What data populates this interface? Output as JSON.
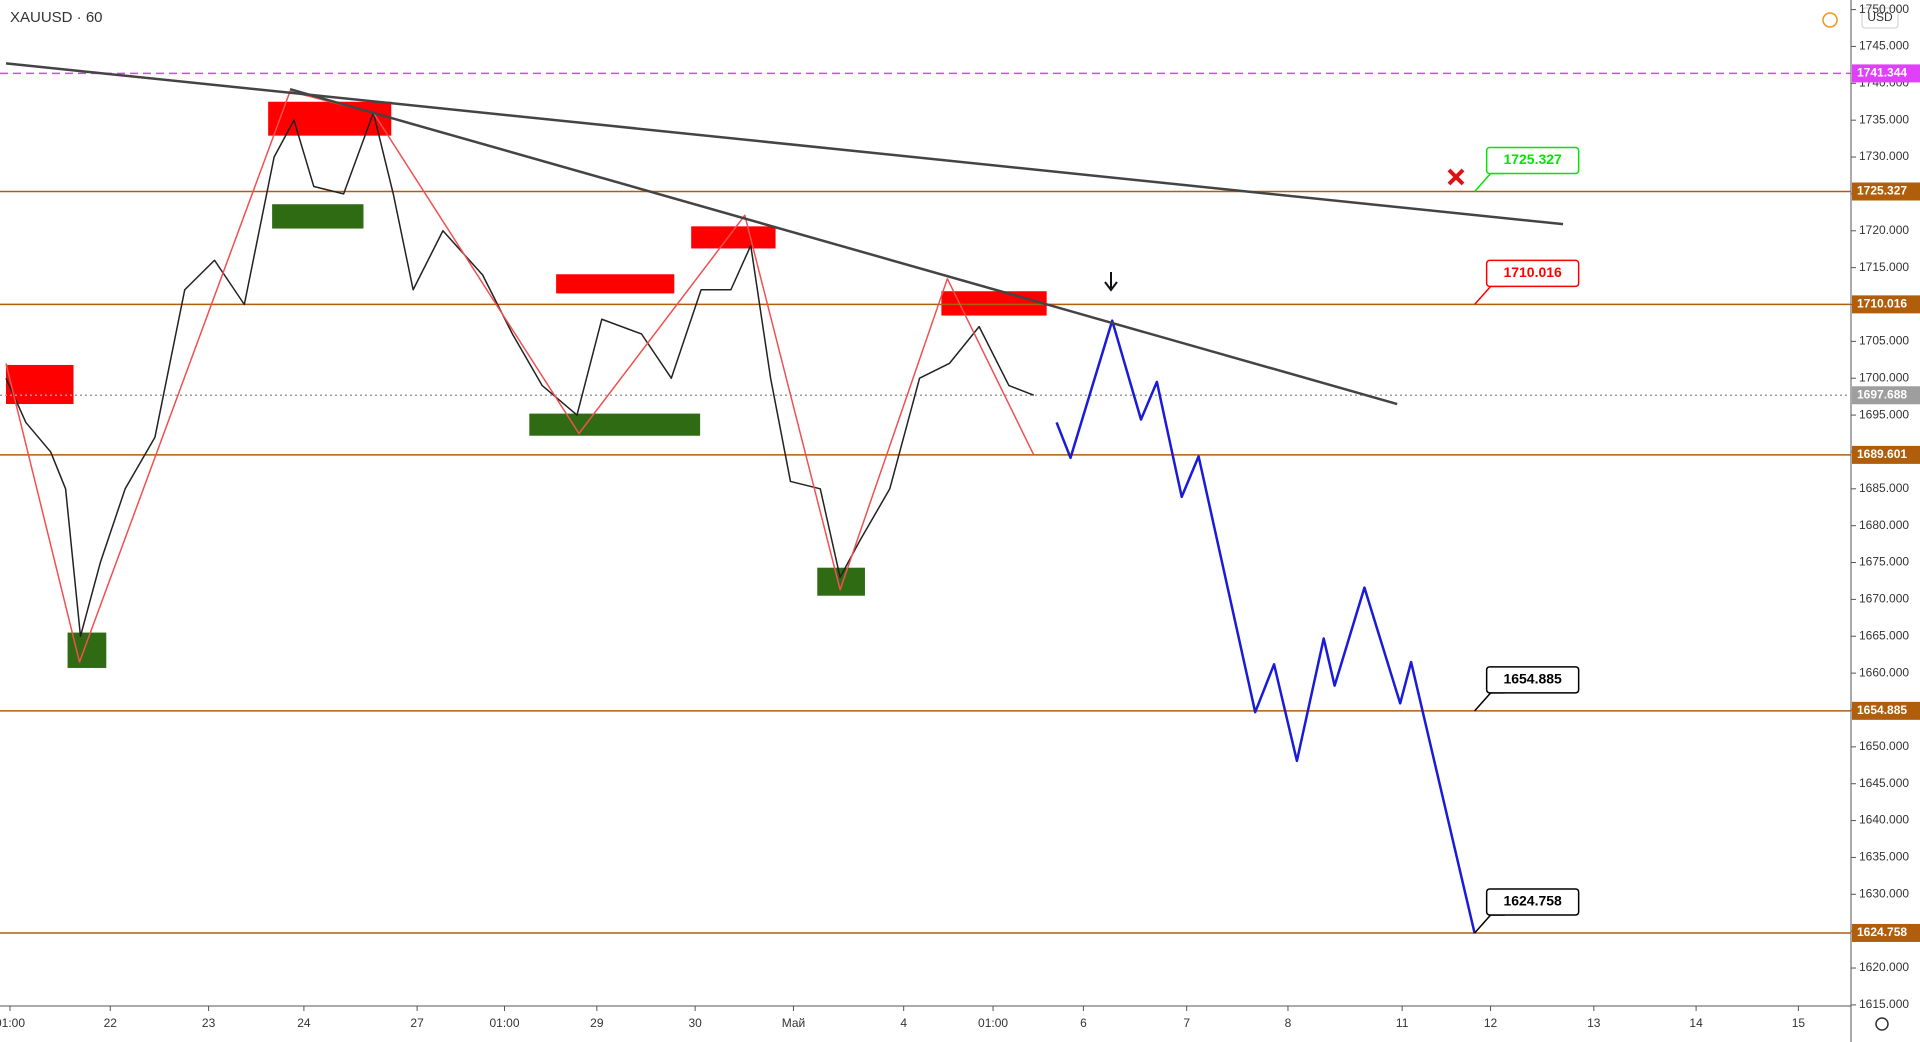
{
  "chart_data": {
    "type": "line",
    "title": "XAUUSD · 60",
    "currency": "USD",
    "xlim": [
      0,
      18.58
    ],
    "xticks": [
      {
        "value": 0.04,
        "label": "01:00"
      },
      {
        "value": 1.05,
        "label": "22"
      },
      {
        "value": 2.04,
        "label": "23"
      },
      {
        "value": 3.0,
        "label": "24"
      },
      {
        "value": 4.14,
        "label": "27"
      },
      {
        "value": 5.02,
        "label": "01:00"
      },
      {
        "value": 5.95,
        "label": "29"
      },
      {
        "value": 6.94,
        "label": "30"
      },
      {
        "value": 7.93,
        "label": "Май"
      },
      {
        "value": 9.04,
        "label": "4"
      },
      {
        "value": 9.94,
        "label": "01:00"
      },
      {
        "value": 10.85,
        "label": "6"
      },
      {
        "value": 11.89,
        "label": "7"
      },
      {
        "value": 12.91,
        "label": "8"
      },
      {
        "value": 14.06,
        "label": "11"
      },
      {
        "value": 14.95,
        "label": "12"
      },
      {
        "value": 15.99,
        "label": "13"
      },
      {
        "value": 17.02,
        "label": "14"
      },
      {
        "value": 18.05,
        "label": "15"
      }
    ],
    "ylim": [
      1614.85,
      1751.3
    ],
    "yticks": [
      {
        "value": 1615,
        "label": "1615.000"
      },
      {
        "value": 1620,
        "label": "1620.000"
      },
      {
        "value": 1625,
        "label": "1625.000"
      },
      {
        "value": 1630,
        "label": "1630.000"
      },
      {
        "value": 1635,
        "label": "1635.000"
      },
      {
        "value": 1640,
        "label": "1640.000"
      },
      {
        "value": 1645,
        "label": "1645.000"
      },
      {
        "value": 1650,
        "label": "1650.000"
      },
      {
        "value": 1655,
        "label": "1655.000"
      },
      {
        "value": 1660,
        "label": "1660.000"
      },
      {
        "value": 1665,
        "label": "1665.000"
      },
      {
        "value": 1670,
        "label": "1670.000"
      },
      {
        "value": 1675,
        "label": "1675.000"
      },
      {
        "value": 1680,
        "label": "1680.000"
      },
      {
        "value": 1685,
        "label": "1685.000"
      },
      {
        "value": 1690,
        "label": "1690.000"
      },
      {
        "value": 1695,
        "label": "1695.000"
      },
      {
        "value": 1700,
        "label": "1700.000"
      },
      {
        "value": 1705,
        "label": "1705.000"
      },
      {
        "value": 1710,
        "label": "1710.000"
      },
      {
        "value": 1715,
        "label": "1715.000"
      },
      {
        "value": 1720,
        "label": "1720.000"
      },
      {
        "value": 1725,
        "label": "1725.000"
      },
      {
        "value": 1730,
        "label": "1730.000"
      },
      {
        "value": 1735,
        "label": "1735.000"
      },
      {
        "value": 1740,
        "label": "1740.000"
      },
      {
        "value": 1745,
        "label": "1745.000"
      },
      {
        "value": 1750,
        "label": "1750.000"
      }
    ],
    "levels": [
      {
        "value": 1741.344,
        "color": "#e040fb",
        "style": "dashed"
      },
      {
        "value": 1725.327,
        "color": "#b05e0b",
        "style": "solid"
      },
      {
        "value": 1710.016,
        "color": "#b05e0b",
        "style": "solid"
      },
      {
        "value": 1697.688,
        "color": "#9e9e9e",
        "style": "dotted"
      },
      {
        "value": 1689.601,
        "color": "#b05e0b",
        "style": "solid"
      },
      {
        "value": 1654.885,
        "color": "#b05e0b",
        "style": "solid"
      },
      {
        "value": 1624.758,
        "color": "#b05e0b",
        "style": "solid"
      }
    ],
    "callouts": [
      {
        "value": 1725.327,
        "x": 14.79,
        "color": "#00e600"
      },
      {
        "value": 1710.016,
        "x": 14.79,
        "color": "#ff0000"
      },
      {
        "value": 1654.885,
        "x": 14.79,
        "color": "#000000"
      },
      {
        "value": 1624.758,
        "x": 14.79,
        "color": "#000000"
      }
    ],
    "zones": [
      {
        "x": [
          0,
          0.68
        ],
        "y": [
          1696.5,
          1701.8
        ],
        "color": "#ff0000"
      },
      {
        "x": [
          2.64,
          3.88
        ],
        "y": [
          1732.9,
          1737.5
        ],
        "color": "#ff0000"
      },
      {
        "x": [
          2.68,
          3.6
        ],
        "y": [
          1720.3,
          1723.6
        ],
        "color": "#2e6b13"
      },
      {
        "x": [
          5.54,
          6.73
        ],
        "y": [
          1711.5,
          1714.1
        ],
        "color": "#ff0000"
      },
      {
        "x": [
          5.27,
          6.99
        ],
        "y": [
          1692.2,
          1695.2
        ],
        "color": "#2e6b13"
      },
      {
        "x": [
          6.9,
          7.75
        ],
        "y": [
          1717.6,
          1720.6
        ],
        "color": "#ff0000"
      },
      {
        "x": [
          0.62,
          1.01
        ],
        "y": [
          1660.7,
          1665.5
        ],
        "color": "#2e6b13"
      },
      {
        "x": [
          8.17,
          8.65
        ],
        "y": [
          1670.5,
          1674.3
        ],
        "color": "#2e6b13"
      },
      {
        "x": [
          9.42,
          10.48
        ],
        "y": [
          1708.5,
          1711.8
        ],
        "color": "#ff0000"
      }
    ],
    "series": [
      {
        "name": "price",
        "color": "#222222",
        "width": 1.5,
        "x": [
          0.0,
          0.2,
          0.45,
          0.6,
          0.75,
          0.95,
          1.2,
          1.5,
          1.8,
          2.1,
          2.4,
          2.7,
          2.9,
          3.1,
          3.4,
          3.7,
          3.9,
          4.1,
          4.4,
          4.8,
          5.1,
          5.4,
          5.75,
          6.0,
          6.4,
          6.7,
          7.0,
          7.3,
          7.5,
          7.7,
          7.9,
          8.2,
          8.4,
          8.6,
          8.9,
          9.2,
          9.5,
          9.8,
          10.1,
          10.35
        ],
        "values": [
          1700,
          1694,
          1690,
          1685,
          1665,
          1675,
          1685,
          1692,
          1712,
          1716,
          1710,
          1730,
          1735,
          1726,
          1725,
          1736,
          1725,
          1712,
          1720,
          1714,
          1706,
          1699,
          1695,
          1708,
          1706,
          1700,
          1712,
          1712,
          1718,
          1700,
          1686,
          1685,
          1673,
          1678,
          1685,
          1700,
          1702,
          1707,
          1699,
          1697.7
        ]
      },
      {
        "name": "zigzag",
        "color": "#f05050",
        "width": 1.5,
        "x": [
          0,
          0.74,
          2.86,
          3.7,
          5.77,
          7.44,
          8.4,
          9.48,
          10.35
        ],
        "values": [
          1702.0,
          1661.5,
          1738.9,
          1736.0,
          1692.5,
          1722.1,
          1671.3,
          1713.5,
          1689.6
        ]
      },
      {
        "name": "projection",
        "color": "#1a1adb",
        "width": 2.5,
        "x": [
          10.58,
          10.72,
          11.14,
          11.43,
          11.59,
          11.84,
          12.01,
          12.58,
          12.77,
          13.0,
          13.27,
          13.38,
          13.68,
          14.04,
          14.15,
          14.79
        ],
        "values": [
          1694.0,
          1689.2,
          1707.8,
          1694.4,
          1699.5,
          1683.9,
          1689.4,
          1654.7,
          1661.2,
          1648.1,
          1664.7,
          1658.3,
          1671.6,
          1655.9,
          1661.5,
          1624.7
        ]
      },
      {
        "name": "trendline-1",
        "color": "#444444",
        "width": 2.5,
        "x": [
          0,
          15.68
        ],
        "values": [
          1742.7,
          1720.9
        ]
      },
      {
        "name": "trendline-2",
        "color": "#444444",
        "width": 2.5,
        "x": [
          2.86,
          14.01
        ],
        "values": [
          1739.2,
          1696.5
        ]
      }
    ]
  }
}
